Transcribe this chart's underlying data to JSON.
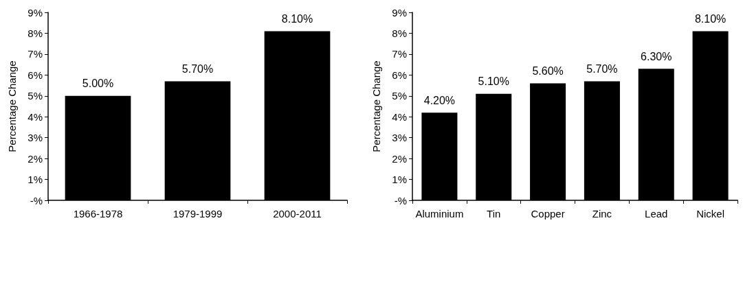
{
  "chart_data": [
    {
      "type": "bar",
      "ylabel": "Percentage Change",
      "categories": [
        "1966-1978",
        "1979-1999",
        "2000-2011"
      ],
      "values": [
        5.0,
        5.7,
        8.1
      ],
      "color": "#000000",
      "value_labels": [
        "5.00%",
        "5.70%",
        "8.10%"
      ],
      "ylim": [
        0,
        9
      ],
      "yticks": [
        {
          "value": 0,
          "label": "-%"
        },
        {
          "value": 1,
          "label": "1%"
        },
        {
          "value": 2,
          "label": "2%"
        },
        {
          "value": 3,
          "label": "3%"
        },
        {
          "value": 4,
          "label": "4%"
        },
        {
          "value": 5,
          "label": "5%"
        },
        {
          "value": 6,
          "label": "6%"
        },
        {
          "value": 7,
          "label": "7%"
        },
        {
          "value": 8,
          "label": "8%"
        },
        {
          "value": 9,
          "label": "9%"
        }
      ],
      "grid": false
    },
    {
      "type": "bar",
      "ylabel": "Percentage Change",
      "categories": [
        "Aluminium",
        "Tin",
        "Copper",
        "Zinc",
        "Lead",
        "Nickel"
      ],
      "values": [
        4.2,
        5.1,
        5.6,
        5.7,
        6.3,
        8.1
      ],
      "color": "#000000",
      "value_labels": [
        "4.20%",
        "5.10%",
        "5.60%",
        "5.70%",
        "6.30%",
        "8.10%"
      ],
      "ylim": [
        0,
        9
      ],
      "yticks": [
        {
          "value": 0,
          "label": "-%"
        },
        {
          "value": 1,
          "label": "1%"
        },
        {
          "value": 2,
          "label": "2%"
        },
        {
          "value": 3,
          "label": "3%"
        },
        {
          "value": 4,
          "label": "4%"
        },
        {
          "value": 5,
          "label": "5%"
        },
        {
          "value": 6,
          "label": "6%"
        },
        {
          "value": 7,
          "label": "7%"
        },
        {
          "value": 8,
          "label": "8%"
        },
        {
          "value": 9,
          "label": "9%"
        }
      ],
      "grid": false
    }
  ]
}
